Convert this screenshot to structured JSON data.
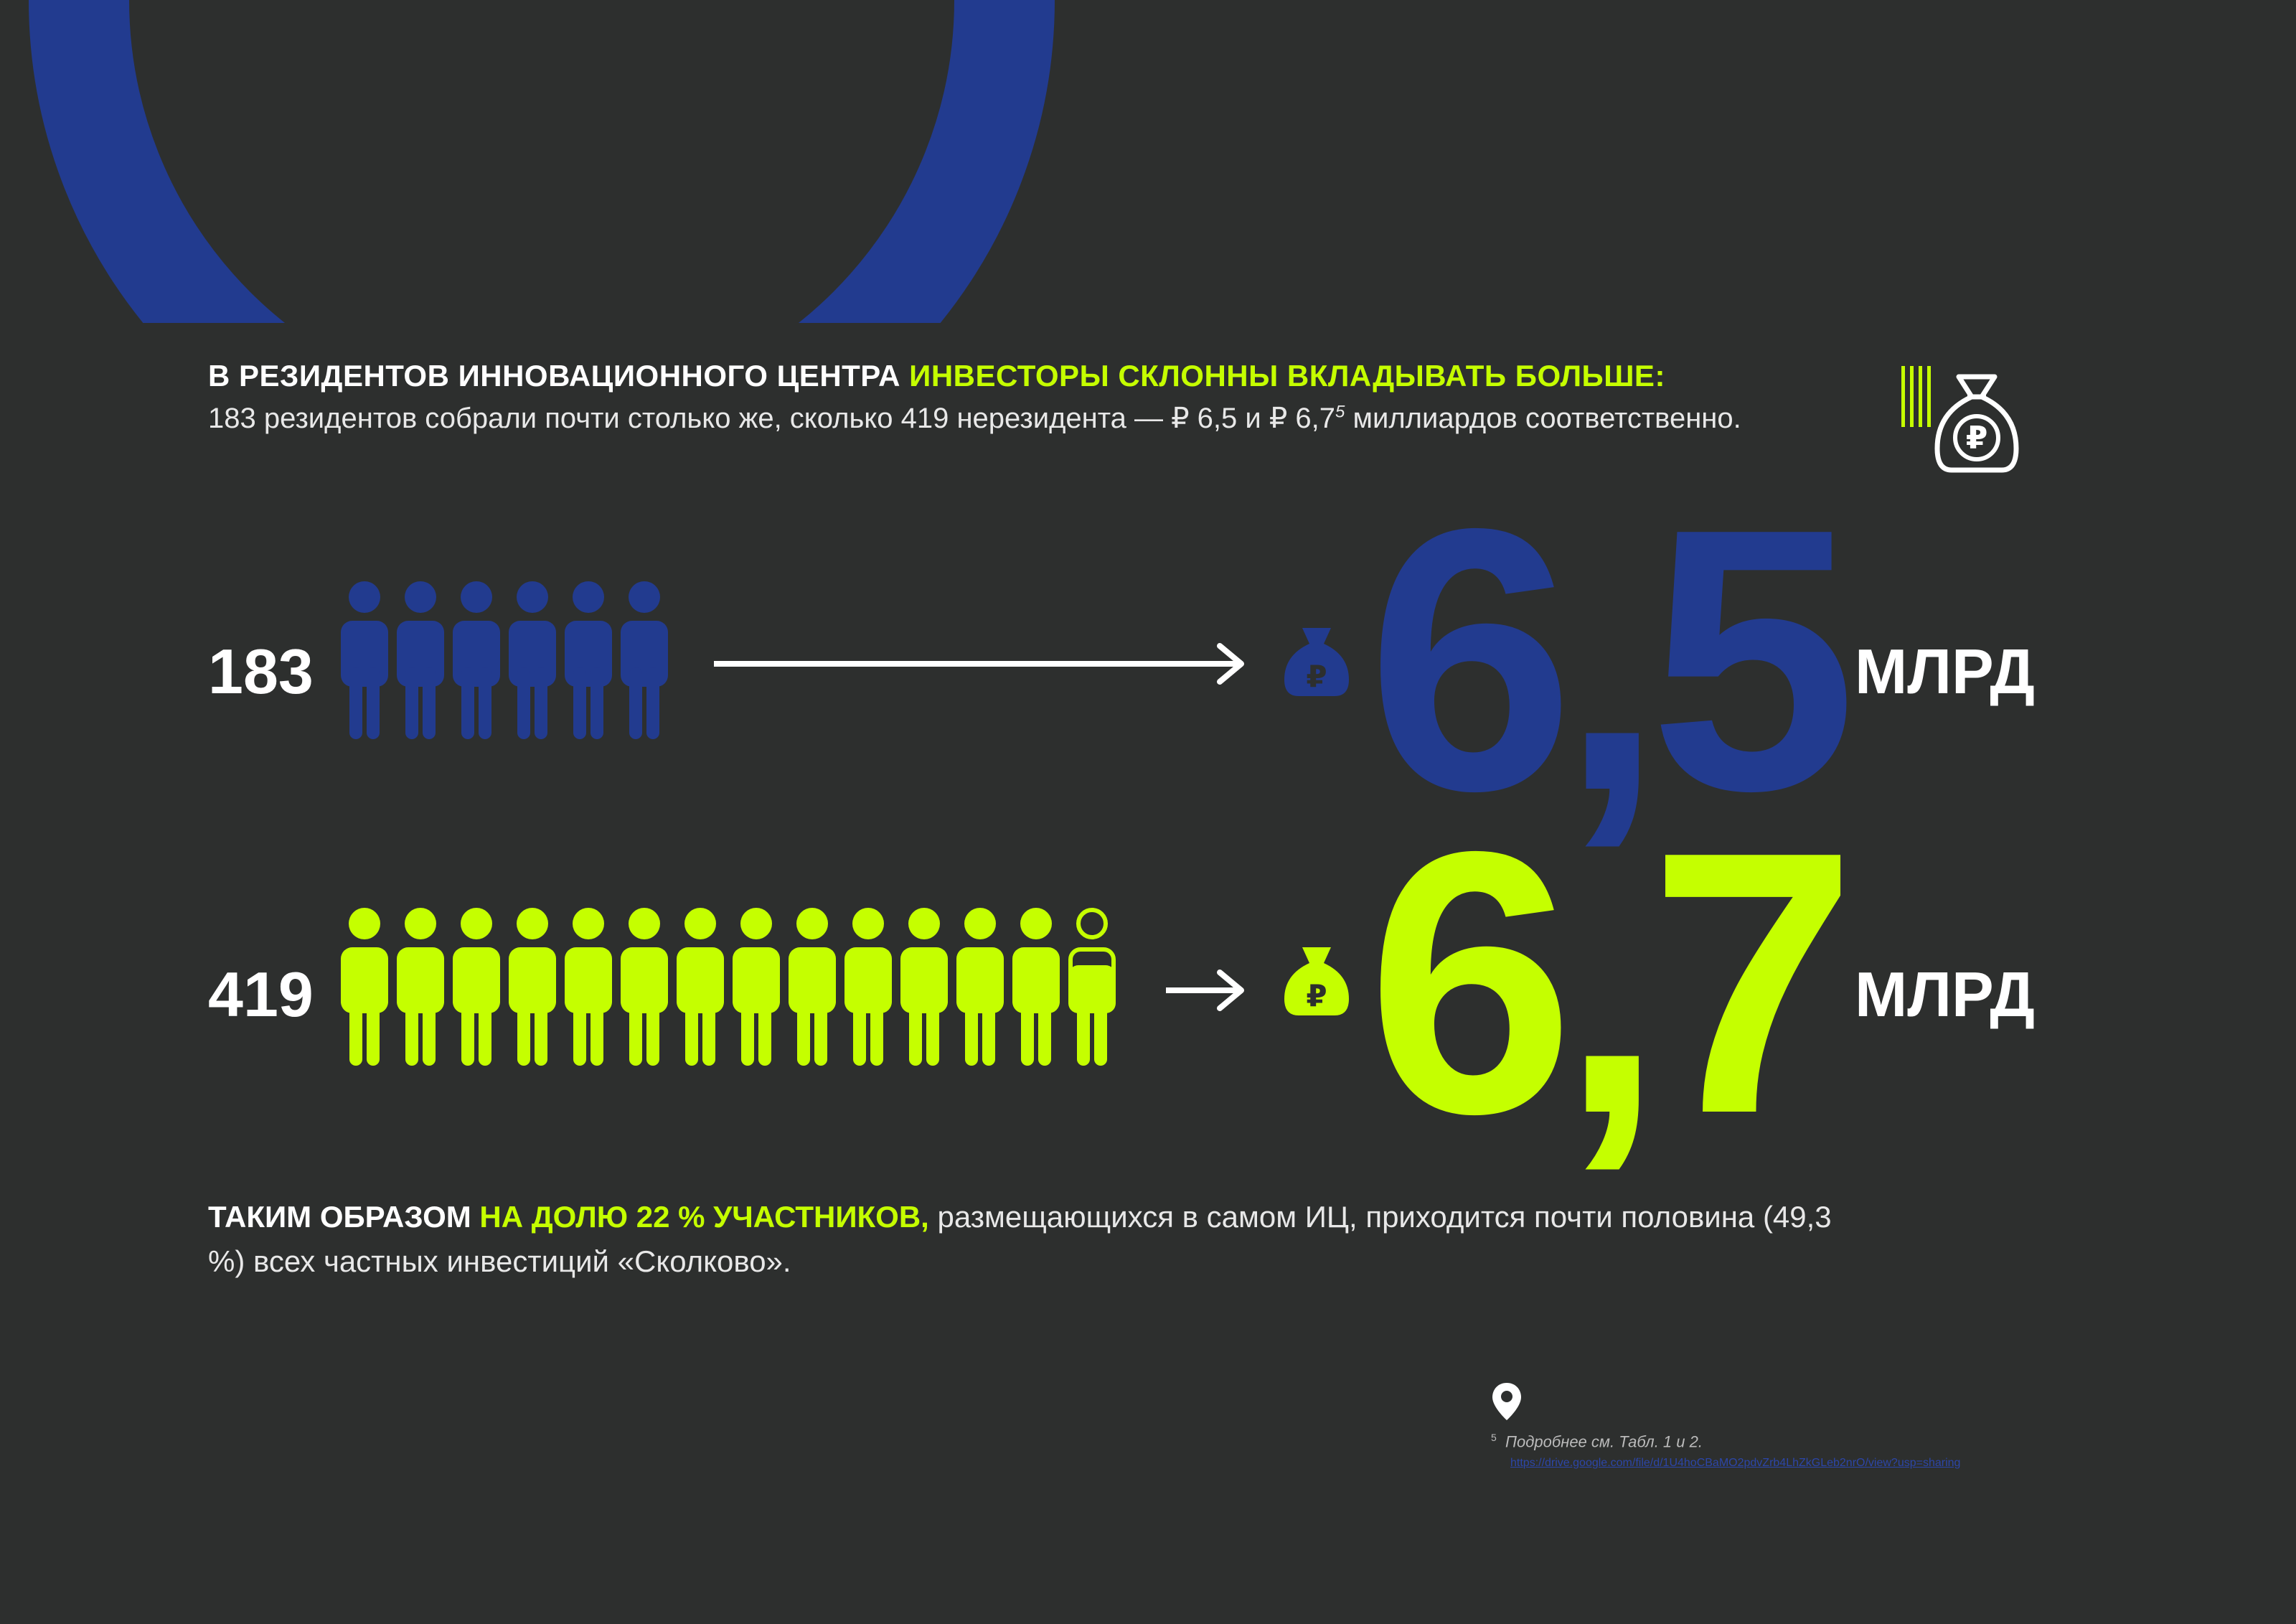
{
  "colors": {
    "background": "#2d2f2e",
    "blue": "#223b8f",
    "lime": "#c5ff00",
    "white": "#ffffff"
  },
  "header": {
    "title_white": "В РЕЗИДЕНТОВ ИННОВАЦИОННОГО ЦЕНТРА",
    "title_highlight": "ИНВЕСТОРЫ СКЛОННЫ ВКЛАДЫВАТЬ БОЛЬШЕ:",
    "subtitle_main": "183 резидентов собрали почти столько же, сколько 419 нерезидента — ₽ 6,5 и ₽ 6,7",
    "subtitle_sup": "5",
    "subtitle_end": " миллиардов соответственно.",
    "icon": "money-bag-ruble-icon"
  },
  "rows": [
    {
      "count": "183",
      "value": "6,5",
      "unit": "МЛРД",
      "color": "#223b8f",
      "people_icons": 6
    },
    {
      "count": "419",
      "value": "6,7",
      "unit": "МЛРД",
      "color": "#c5ff00",
      "people_icons": 14,
      "partial_last": true
    }
  ],
  "summary": {
    "lead": "ТАКИМ ОБРАЗОМ",
    "highlight": "НА ДОЛЮ 22 % УЧАСТНИКОВ,",
    "rest": " размещающихся в самом ИЦ, приходится почти половина (49,3 %) всех частных инвестиций «Сколково»."
  },
  "footnote": {
    "number": "5",
    "text": "Подробнее см. Табл. 1 и 2.",
    "link": "https://drive.google.com/file/d/1U4hoCBaMO2pdvZrb4LhZkGLeb2nrO/view?usp=sharing",
    "icon": "location-pin-icon"
  }
}
